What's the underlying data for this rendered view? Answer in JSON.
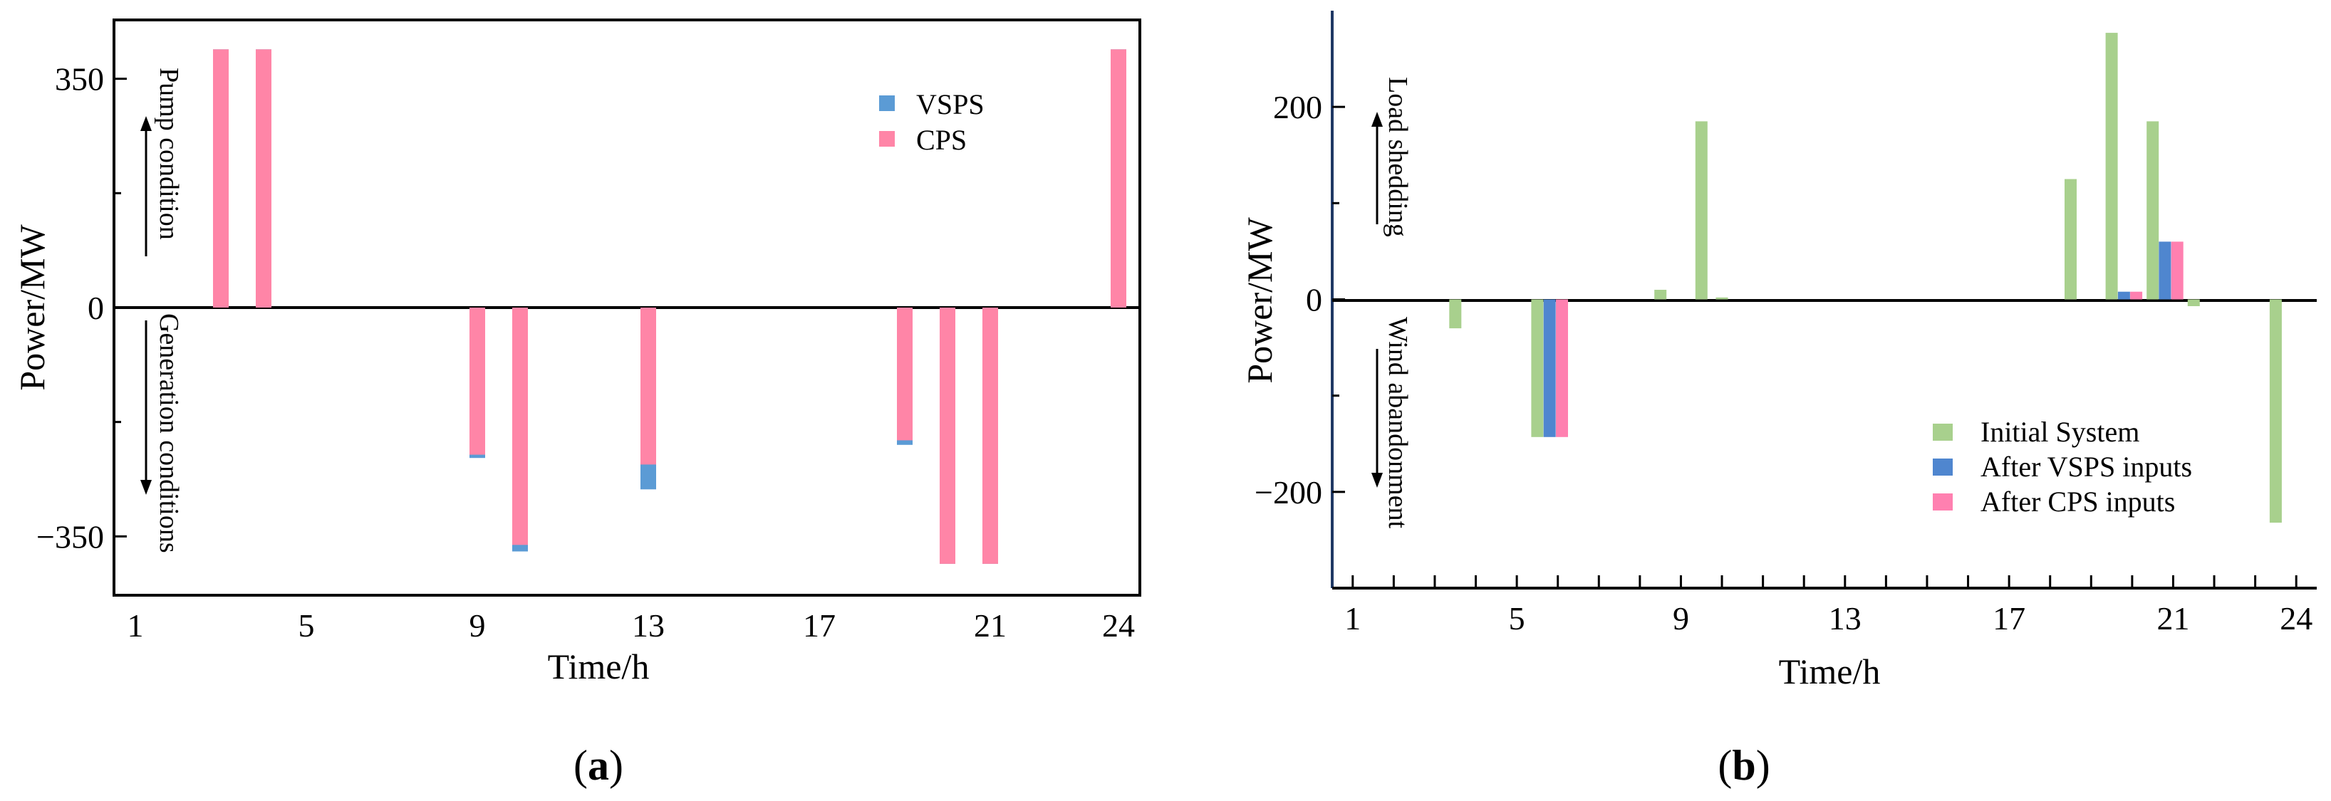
{
  "colors": {
    "vsps_a": "#5b9bd5",
    "cps_a": "#ff85a7",
    "initial_b": "#a8d08d",
    "vsps_b": "#4f86cf",
    "cps_b": "#ff80b0"
  },
  "chart_data": [
    {
      "type": "bar",
      "panel": "a",
      "panel_label": "a",
      "xlabel": "Time/h",
      "ylabel": "Power/MW",
      "xlim": [
        0,
        24
      ],
      "ylim": [
        -440,
        440
      ],
      "x_ticks": [
        1,
        5,
        9,
        13,
        17,
        21,
        24
      ],
      "y_ticks": [
        -350,
        0,
        350
      ],
      "legend": [
        "VSPS",
        "CPS"
      ],
      "annotations": {
        "up": "Pump condition",
        "down": "Generation conditions"
      },
      "series": [
        {
          "name": "VSPS",
          "color": "#5b9bd5",
          "points": [
            {
              "x": 2.5,
              "y": 395
            },
            {
              "x": 3.5,
              "y": 395
            },
            {
              "x": 8.5,
              "y": -230
            },
            {
              "x": 9.5,
              "y": -373
            },
            {
              "x": 12.5,
              "y": -278
            },
            {
              "x": 18.5,
              "y": -210
            },
            {
              "x": 19.5,
              "y": -392
            },
            {
              "x": 20.5,
              "y": -392
            },
            {
              "x": 23.5,
              "y": 395
            }
          ]
        },
        {
          "name": "CPS",
          "color": "#ff85a7",
          "points": [
            {
              "x": 2.5,
              "y": 395
            },
            {
              "x": 3.5,
              "y": 395
            },
            {
              "x": 8.5,
              "y": -225
            },
            {
              "x": 9.5,
              "y": -363
            },
            {
              "x": 12.5,
              "y": -240
            },
            {
              "x": 18.5,
              "y": -203
            },
            {
              "x": 19.5,
              "y": -392
            },
            {
              "x": 20.5,
              "y": -392
            },
            {
              "x": 23.5,
              "y": 395
            }
          ]
        }
      ]
    },
    {
      "type": "bar",
      "panel": "b",
      "panel_label": "b",
      "xlabel": "Time/h",
      "ylabel": "Power/MW",
      "xlim": [
        0,
        24
      ],
      "ylim": [
        -300,
        300
      ],
      "x_ticks": [
        1,
        5,
        9,
        13,
        17,
        21,
        24
      ],
      "y_ticks": [
        -200,
        0,
        200
      ],
      "legend": [
        "Initial System",
        "After VSPS inputs",
        "After CPS inputs"
      ],
      "annotations": {
        "up": "Load shedding",
        "down": "Wind abandonment"
      },
      "series": [
        {
          "name": "Initial System",
          "color": "#a8d08d",
          "points": [
            {
              "x": 3.0,
              "y": -30
            },
            {
              "x": 5.0,
              "y": -143
            },
            {
              "x": 8.0,
              "y": 10
            },
            {
              "x": 9.0,
              "y": 185
            },
            {
              "x": 9.5,
              "y": 2
            },
            {
              "x": 18.0,
              "y": 125
            },
            {
              "x": 19.0,
              "y": 277
            },
            {
              "x": 20.0,
              "y": 185
            },
            {
              "x": 21.0,
              "y": -7
            },
            {
              "x": 23.0,
              "y": -232
            }
          ]
        },
        {
          "name": "After VSPS inputs",
          "color": "#4f86cf",
          "points": [
            {
              "x": 5.3,
              "y": -143
            },
            {
              "x": 19.3,
              "y": 8
            },
            {
              "x": 20.3,
              "y": 60
            }
          ]
        },
        {
          "name": "After CPS inputs",
          "color": "#ff80b0",
          "points": [
            {
              "x": 5.6,
              "y": -143
            },
            {
              "x": 19.6,
              "y": 8
            },
            {
              "x": 20.6,
              "y": 60
            }
          ]
        }
      ]
    }
  ]
}
